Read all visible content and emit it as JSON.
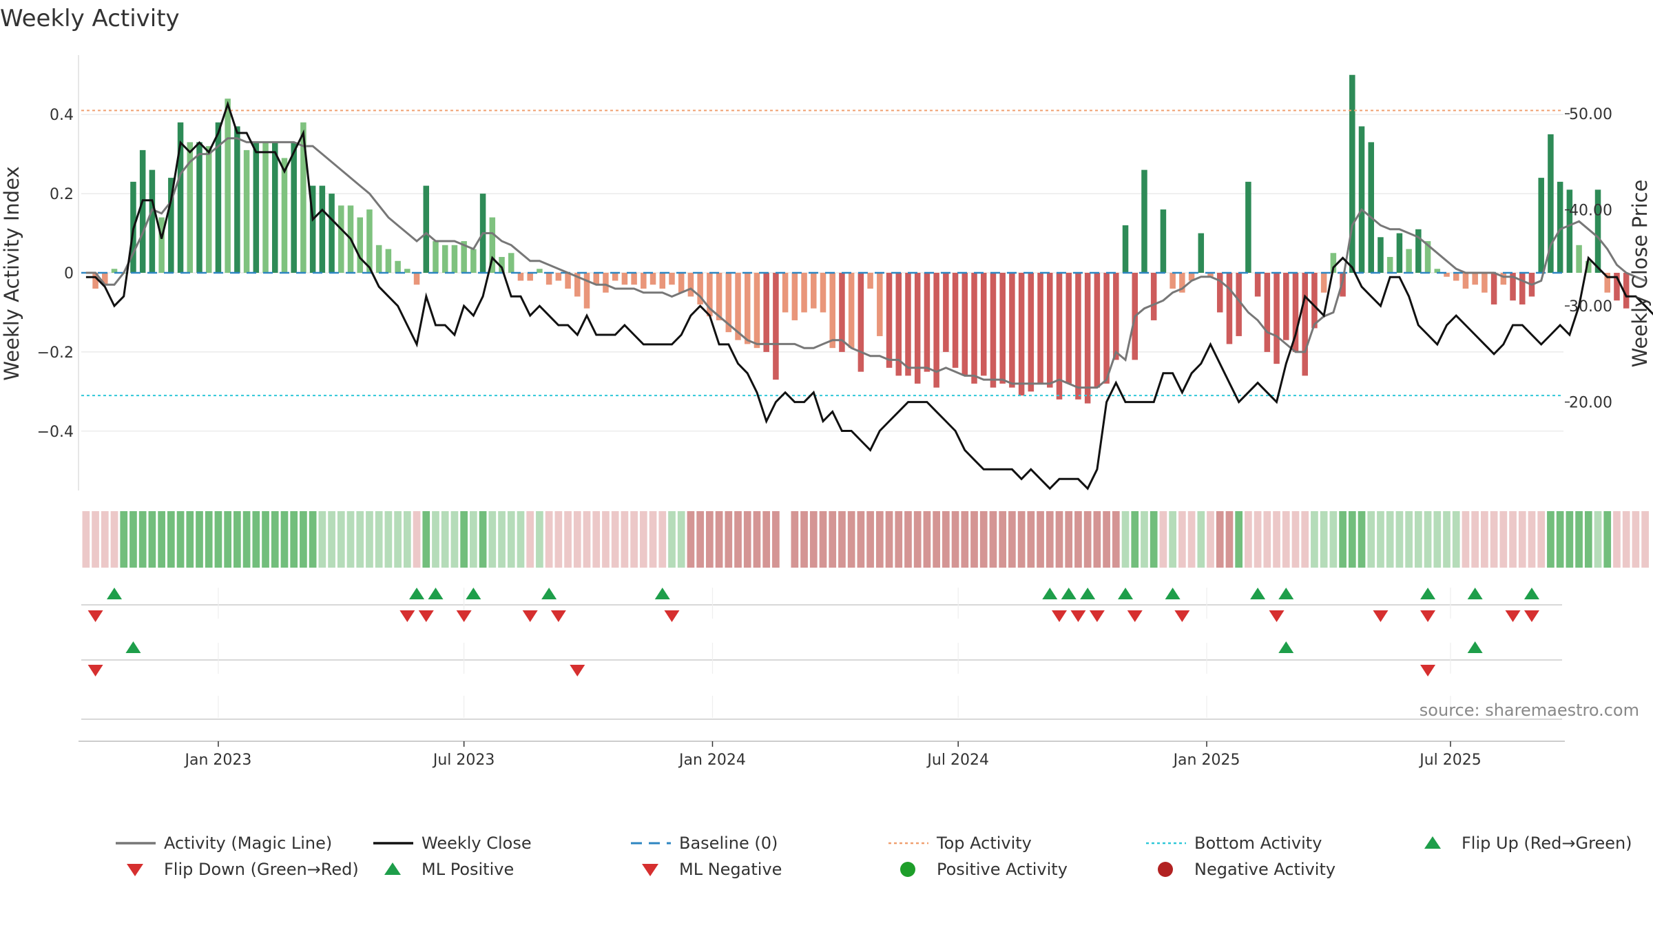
{
  "chart_data": {
    "type": "bar",
    "title": "Weekly Activity",
    "ylabel_left": "Weekly Activity Index",
    "ylabel_right": "Weekly Close Price",
    "ylim_left": [
      -0.55,
      0.55
    ],
    "ylim_right": [
      10.8,
      56.1
    ],
    "yticks_left": [
      {
        "value": 0.4,
        "label": "0.4"
      },
      {
        "value": 0.2,
        "label": "0.2"
      },
      {
        "value": 0,
        "label": "0"
      },
      {
        "value": -0.2,
        "label": "−0.2"
      },
      {
        "value": -0.4,
        "label": "−0.4"
      }
    ],
    "yticks_right": [
      {
        "value": 50,
        "label": "50.00"
      },
      {
        "value": 40,
        "label": "40.00"
      },
      {
        "value": 30,
        "label": "30.00"
      },
      {
        "value": 20,
        "label": "20.00"
      }
    ],
    "x_range_weeks": [
      0,
      157
    ],
    "x_ticks": [
      {
        "week": 14,
        "label": "Jan 2023"
      },
      {
        "week": 40,
        "label": "Jul 2023"
      },
      {
        "week": 66.3,
        "label": "Jan 2024"
      },
      {
        "week": 92.3,
        "label": "Jul 2024"
      },
      {
        "week": 118.6,
        "label": "Jan 2025"
      },
      {
        "week": 144.4,
        "label": "Jul 2025"
      }
    ],
    "top_activity": 0.41,
    "bottom_activity": -0.31,
    "weekly_activity": [
      0.0,
      -0.04,
      -0.03,
      0.01,
      0.0,
      0.23,
      0.31,
      0.26,
      0.14,
      0.24,
      0.38,
      0.33,
      0.33,
      0.32,
      0.38,
      0.44,
      0.37,
      0.31,
      0.33,
      0.33,
      0.33,
      0.29,
      0.33,
      0.38,
      0.22,
      0.22,
      0.2,
      0.17,
      0.17,
      0.14,
      0.16,
      0.07,
      0.06,
      0.03,
      0.01,
      -0.03,
      0.22,
      0.08,
      0.07,
      0.07,
      0.08,
      0.06,
      0.2,
      0.14,
      0.04,
      0.05,
      -0.02,
      -0.02,
      0.01,
      -0.03,
      -0.02,
      -0.04,
      -0.06,
      -0.09,
      -0.03,
      -0.05,
      -0.02,
      -0.03,
      -0.03,
      -0.04,
      -0.03,
      -0.04,
      -0.03,
      -0.05,
      -0.06,
      -0.08,
      -0.11,
      -0.12,
      -0.15,
      -0.17,
      -0.18,
      -0.19,
      -0.2,
      -0.27,
      -0.1,
      -0.12,
      -0.1,
      -0.09,
      -0.1,
      -0.19,
      -0.2,
      -0.19,
      -0.25,
      -0.04,
      -0.16,
      -0.24,
      -0.26,
      -0.26,
      -0.28,
      -0.25,
      -0.29,
      -0.2,
      -0.24,
      -0.26,
      -0.28,
      -0.26,
      -0.29,
      -0.28,
      -0.29,
      -0.31,
      -0.3,
      -0.28,
      -0.29,
      -0.32,
      -0.28,
      -0.32,
      -0.33,
      -0.29,
      -0.28,
      -0.22,
      0.12,
      -0.22,
      0.26,
      -0.12,
      0.16,
      -0.04,
      -0.05,
      -0.02,
      0.1,
      -0.01,
      -0.1,
      -0.18,
      -0.16,
      0.23,
      -0.06,
      -0.2,
      -0.23,
      -0.17,
      -0.2,
      -0.26,
      -0.14,
      -0.05,
      0.05,
      -0.06,
      0.5,
      0.37,
      0.33,
      0.09,
      0.04,
      0.1,
      0.06,
      0.11,
      0.08,
      0.01,
      -0.01,
      -0.02,
      -0.04,
      -0.03,
      -0.05,
      -0.08,
      -0.03,
      -0.07,
      -0.08,
      -0.06,
      0.24,
      0.35,
      0.23,
      0.21,
      0.07,
      0.03,
      0.21,
      -0.05,
      -0.07,
      -0.09
    ],
    "magic_line": [
      0.0,
      0.0,
      -0.03,
      -0.03,
      0.0,
      0.05,
      0.1,
      0.16,
      0.15,
      0.18,
      0.25,
      0.28,
      0.3,
      0.3,
      0.32,
      0.34,
      0.34,
      0.33,
      0.33,
      0.33,
      0.33,
      0.33,
      0.33,
      0.32,
      0.32,
      0.3,
      0.28,
      0.26,
      0.24,
      0.22,
      0.2,
      0.17,
      0.14,
      0.12,
      0.1,
      0.08,
      0.1,
      0.08,
      0.08,
      0.08,
      0.07,
      0.06,
      0.1,
      0.1,
      0.08,
      0.07,
      0.05,
      0.03,
      0.03,
      0.02,
      0.01,
      0.0,
      -0.01,
      -0.02,
      -0.03,
      -0.03,
      -0.04,
      -0.04,
      -0.04,
      -0.05,
      -0.05,
      -0.05,
      -0.06,
      -0.05,
      -0.04,
      -0.06,
      -0.09,
      -0.11,
      -0.13,
      -0.15,
      -0.17,
      -0.18,
      -0.18,
      -0.18,
      -0.18,
      -0.18,
      -0.19,
      -0.19,
      -0.18,
      -0.17,
      -0.17,
      -0.19,
      -0.2,
      -0.21,
      -0.21,
      -0.22,
      -0.22,
      -0.24,
      -0.24,
      -0.24,
      -0.25,
      -0.24,
      -0.25,
      -0.26,
      -0.26,
      -0.27,
      -0.27,
      -0.27,
      -0.28,
      -0.28,
      -0.28,
      -0.28,
      -0.28,
      -0.27,
      -0.28,
      -0.29,
      -0.29,
      -0.29,
      -0.27,
      -0.2,
      -0.22,
      -0.11,
      -0.09,
      -0.08,
      -0.07,
      -0.05,
      -0.04,
      -0.02,
      -0.01,
      -0.01,
      -0.02,
      -0.04,
      -0.07,
      -0.1,
      -0.12,
      -0.15,
      -0.16,
      -0.18,
      -0.2,
      -0.2,
      -0.13,
      -0.11,
      -0.1,
      -0.02,
      0.12,
      0.16,
      0.14,
      0.12,
      0.11,
      0.11,
      0.1,
      0.09,
      0.07,
      0.05,
      0.03,
      0.01,
      0.0,
      0.0,
      0.0,
      0.0,
      -0.01,
      -0.01,
      -0.02,
      -0.03,
      -0.02,
      0.07,
      0.11,
      0.12,
      0.13,
      0.11,
      0.09,
      0.06,
      0.02,
      0.0,
      -0.01,
      -0.02
    ],
    "weekly_close": [
      33.0,
      33.0,
      32.0,
      30.0,
      31.0,
      38.0,
      41.0,
      41.0,
      37.0,
      41.0,
      47.0,
      46.0,
      47.0,
      46.0,
      48.0,
      51.0,
      48.0,
      48.0,
      46.0,
      46.0,
      46.0,
      44.0,
      46.0,
      48.0,
      39.0,
      40.0,
      39.0,
      38.0,
      37.0,
      35.0,
      34.0,
      32.0,
      31.0,
      30.0,
      28.0,
      26.0,
      31.0,
      28.0,
      28.0,
      27.0,
      30.0,
      29.0,
      31.0,
      35.0,
      34.0,
      31.0,
      31.0,
      29.0,
      30.0,
      29.0,
      28.0,
      28.0,
      27.0,
      29.0,
      27.0,
      27.0,
      27.0,
      28.0,
      27.0,
      26.0,
      26.0,
      26.0,
      26.0,
      27.0,
      29.0,
      30.0,
      29.0,
      26.0,
      26.0,
      24.0,
      23.0,
      21.0,
      18.0,
      20.0,
      21.0,
      20.0,
      20.0,
      21.0,
      18.0,
      19.0,
      17.0,
      17.0,
      16.0,
      15.0,
      17.0,
      18.0,
      19.0,
      20.0,
      20.0,
      20.0,
      19.0,
      18.0,
      17.0,
      15.0,
      14.0,
      13.0,
      13.0,
      13.0,
      13.0,
      12.0,
      13.0,
      12.0,
      11.0,
      12.0,
      12.0,
      12.0,
      11.0,
      13.0,
      20.0,
      22.0,
      20.0,
      20.0,
      20.0,
      20.0,
      23.0,
      23.0,
      21.0,
      23.0,
      24.0,
      26.0,
      24.0,
      22.0,
      20.0,
      21.0,
      22.0,
      21.0,
      20.0,
      24.0,
      27.0,
      31.0,
      30.0,
      29.0,
      34.0,
      35.0,
      34.0,
      32.0,
      31.0,
      30.0,
      33.0,
      33.0,
      31.0,
      28.0,
      27.0,
      26.0,
      28.0,
      29.0,
      28.0,
      27.0,
      26.0,
      25.0,
      26.0,
      28.0,
      28.0,
      27.0,
      26.0,
      27.0,
      28.0,
      27.0,
      30.0,
      35.0,
      34.0,
      33.0,
      33.0,
      31.0,
      31.0,
      30.0,
      29.0,
      31.0
    ],
    "heat_strip": [
      "r",
      "r",
      "r",
      "r",
      "G",
      "G",
      "G",
      "G",
      "G",
      "G",
      "G",
      "G",
      "G",
      "G",
      "G",
      "G",
      "G",
      "G",
      "G",
      "G",
      "G",
      "G",
      "G",
      "G",
      "G",
      "g",
      "g",
      "g",
      "g",
      "g",
      "g",
      "g",
      "g",
      "g",
      "g",
      "r",
      "G",
      "g",
      "g",
      "g",
      "G",
      "g",
      "G",
      "g",
      "g",
      "g",
      "g",
      "r",
      "g",
      "r",
      "r",
      "r",
      "r",
      "r",
      "r",
      "r",
      "r",
      "r",
      "r",
      "r",
      "r",
      "r",
      "g",
      "g",
      "R",
      "R",
      "R",
      "R",
      "R",
      "R",
      "R",
      "R",
      "R",
      "R",
      "gap",
      "R",
      "R",
      "R",
      "R",
      "R",
      "R",
      "R",
      "R",
      "R",
      "R",
      "R",
      "R",
      "R",
      "R",
      "R",
      "R",
      "R",
      "R",
      "R",
      "R",
      "R",
      "R",
      "R",
      "R",
      "R",
      "R",
      "R",
      "R",
      "R",
      "R",
      "R",
      "R",
      "R",
      "R",
      "R",
      "g",
      "G",
      "g",
      "G",
      "r",
      "g",
      "r",
      "r",
      "g",
      "r",
      "R",
      "R",
      "G",
      "r",
      "r",
      "r",
      "r",
      "r",
      "r",
      "r",
      "g",
      "g",
      "g",
      "G",
      "G",
      "G",
      "g",
      "g",
      "g",
      "g",
      "g",
      "g",
      "g",
      "g",
      "g",
      "g",
      "r",
      "r",
      "r",
      "r",
      "r",
      "r",
      "r",
      "r",
      "r",
      "G",
      "G",
      "G",
      "G",
      "G",
      "g",
      "G",
      "r",
      "r",
      "r",
      "r"
    ],
    "flip_up_weeks": [
      3,
      35,
      37,
      41,
      49,
      61,
      102,
      104,
      106,
      110,
      115,
      124,
      127,
      142,
      147,
      153
    ],
    "flip_down_weeks": [
      1,
      34,
      36,
      40,
      47,
      50,
      62,
      103,
      105,
      107,
      111,
      116,
      126,
      137,
      142,
      151,
      153
    ],
    "ml_positive_weeks": [
      5,
      127,
      147
    ],
    "ml_negative_weeks": [
      1,
      52,
      142
    ],
    "legend": [
      {
        "label": "Activity (Magic Line)",
        "marker": "line",
        "color": "#777777"
      },
      {
        "label": "Weekly Close",
        "marker": "line",
        "color": "#111111"
      },
      {
        "label": "Baseline (0)",
        "marker": "dash",
        "color": "#2e86c1"
      },
      {
        "label": "Top Activity",
        "marker": "dotted",
        "color": "#f0a070"
      },
      {
        "label": "Bottom Activity",
        "marker": "dotted",
        "color": "#30c8d8"
      },
      {
        "label": "Flip Up (Red→Green)",
        "marker": "triangle-up",
        "color": "#1e9e4a"
      },
      {
        "label": "Flip Down (Green→Red)",
        "marker": "triangle-down",
        "color": "#d62f2f"
      },
      {
        "label": "ML Positive",
        "marker": "triangle-up",
        "color": "#1e9e4a"
      },
      {
        "label": "ML Negative",
        "marker": "triangle-down",
        "color": "#d62f2f"
      },
      {
        "label": "Positive Activity",
        "marker": "circle",
        "color": "#1e9e2a"
      },
      {
        "label": "Negative Activity",
        "marker": "circle",
        "color": "#b22222"
      }
    ],
    "source": "source: sharemaestro.com"
  },
  "colors": {
    "strong_green": "#2e8b57",
    "light_green": "#7fc27f",
    "strong_red": "#cd5c5c",
    "light_red": "#e9967a",
    "magic_line": "#777777",
    "close": "#111111",
    "baseline": "#2e86c1",
    "top_line": "#f0a070",
    "bottom_line": "#30c8d8",
    "marker_up": "#1e9e4a",
    "marker_down": "#d62f2f",
    "grid": "#e6e6e6"
  }
}
